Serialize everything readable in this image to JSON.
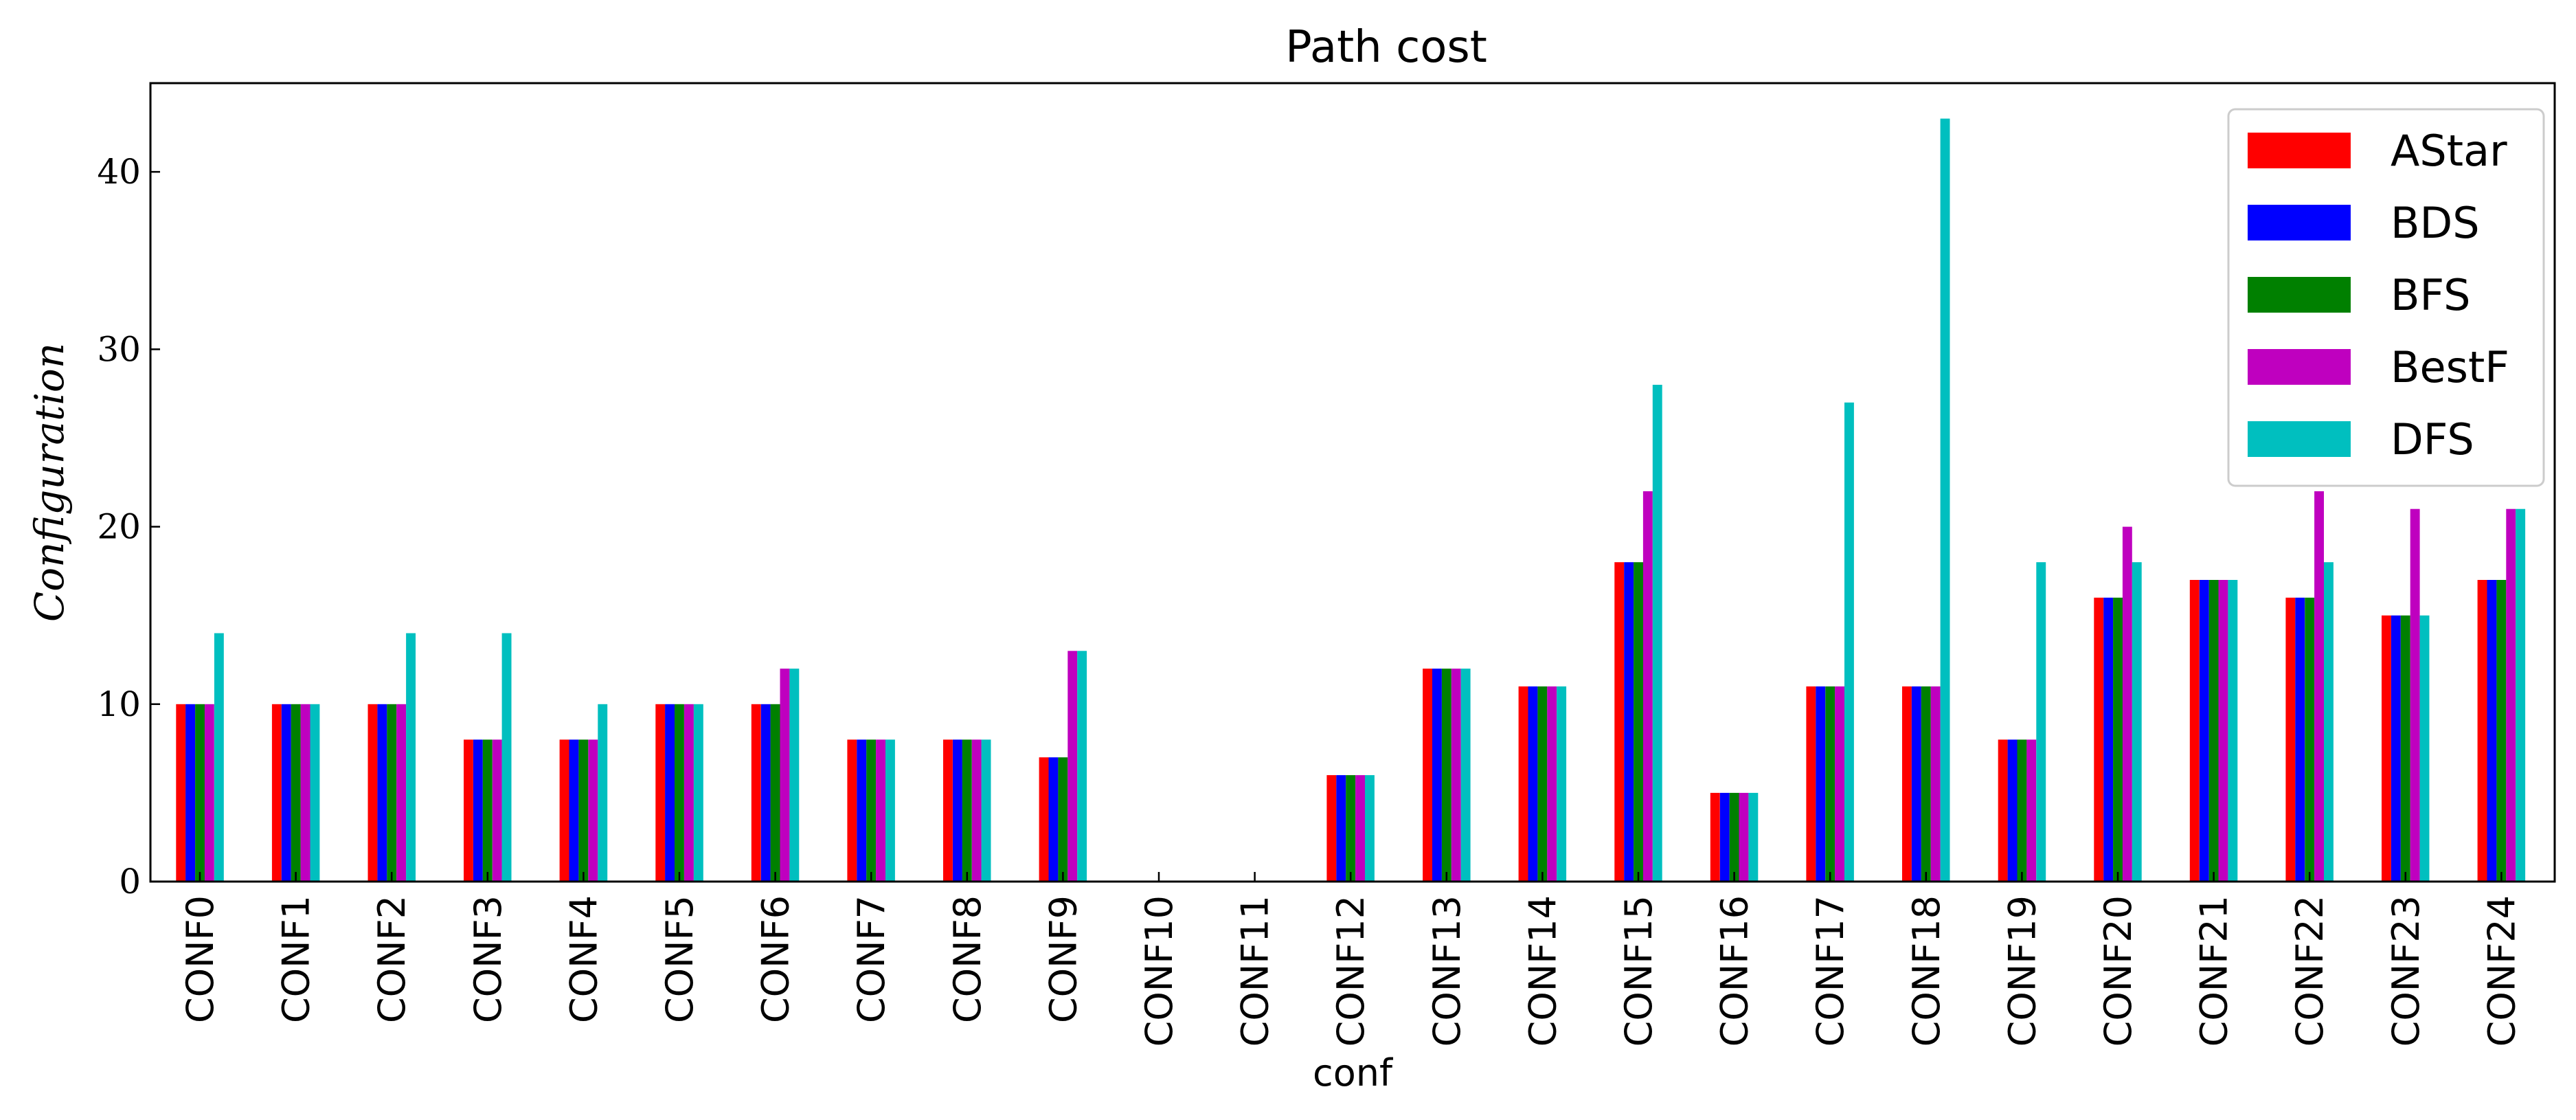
{
  "chart_data": {
    "type": "bar",
    "title": "Path cost",
    "xlabel": "conf",
    "ylabel": "Configuration",
    "ylim": [
      0,
      45
    ],
    "yticks": [
      0,
      10,
      20,
      30,
      40
    ],
    "grid": false,
    "legend_position": "top-right",
    "categories": [
      "CONF0",
      "CONF1",
      "CONF2",
      "CONF3",
      "CONF4",
      "CONF5",
      "CONF6",
      "CONF7",
      "CONF8",
      "CONF9",
      "CONF10",
      "CONF11",
      "CONF12",
      "CONF13",
      "CONF14",
      "CONF15",
      "CONF16",
      "CONF17",
      "CONF18",
      "CONF19",
      "CONF20",
      "CONF21",
      "CONF22",
      "CONF23",
      "CONF24"
    ],
    "series": [
      {
        "name": "AStar",
        "color": "#ff0000",
        "values": [
          10,
          10,
          10,
          8,
          8,
          10,
          10,
          8,
          8,
          7,
          0,
          0,
          6,
          12,
          11,
          18,
          5,
          11,
          11,
          8,
          16,
          17,
          16,
          15,
          17
        ]
      },
      {
        "name": "BDS",
        "color": "#0000ff",
        "values": [
          10,
          10,
          10,
          8,
          8,
          10,
          10,
          8,
          8,
          7,
          0,
          0,
          6,
          12,
          11,
          18,
          5,
          11,
          11,
          8,
          16,
          17,
          16,
          15,
          17
        ]
      },
      {
        "name": "BFS",
        "color": "#008000",
        "values": [
          10,
          10,
          10,
          8,
          8,
          10,
          10,
          8,
          8,
          7,
          0,
          0,
          6,
          12,
          11,
          18,
          5,
          11,
          11,
          8,
          16,
          17,
          16,
          15,
          17
        ]
      },
      {
        "name": "BestF",
        "color": "#bf00bf",
        "values": [
          10,
          10,
          10,
          8,
          8,
          10,
          12,
          8,
          8,
          13,
          0,
          0,
          6,
          12,
          11,
          22,
          5,
          11,
          11,
          8,
          20,
          17,
          22,
          21,
          21
        ]
      },
      {
        "name": "DFS",
        "color": "#00bfbf",
        "values": [
          14,
          10,
          14,
          14,
          10,
          10,
          12,
          8,
          8,
          13,
          0,
          0,
          6,
          12,
          11,
          28,
          5,
          27,
          43,
          18,
          18,
          17,
          18,
          15,
          21
        ]
      }
    ]
  }
}
